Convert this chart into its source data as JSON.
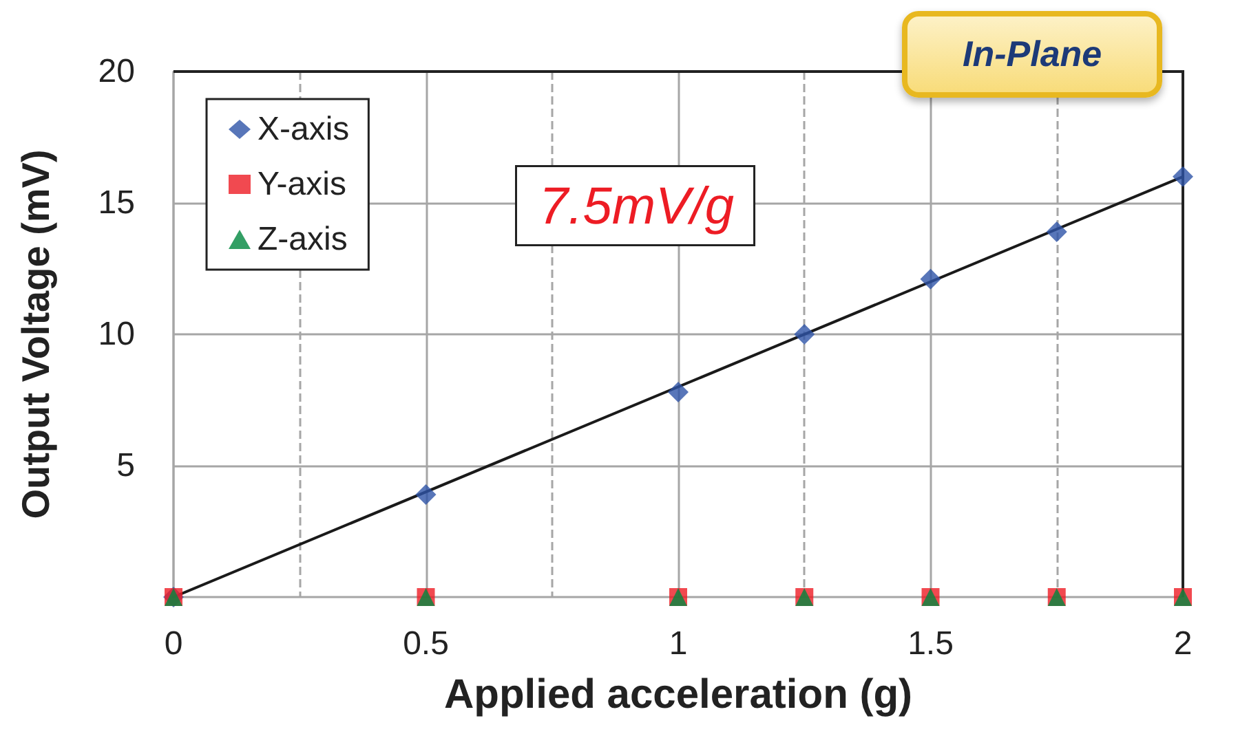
{
  "chart_data": {
    "type": "scatter",
    "xlabel": "Applied acceleration (g)",
    "ylabel": "Output Voltage (mV)",
    "annotations": [
      "7.5mV/g",
      "In-Plane"
    ],
    "xlim": [
      0,
      2
    ],
    "xticks": [
      0,
      {
        "value": 0.25,
        "label": null
      },
      0.5,
      {
        "value": 0.75,
        "label": null
      },
      1,
      {
        "value": 1.25,
        "label": null
      },
      1.5,
      {
        "value": 1.75,
        "label": null
      },
      2
    ],
    "ylim": [
      0,
      20
    ],
    "yticks": [
      5,
      10,
      15,
      20
    ],
    "grid": true,
    "legend": "top left",
    "series": [
      {
        "name": "X-axis",
        "color": "#2e54a8",
        "marker": "diamond",
        "x": [
          0,
          0.5,
          1,
          1.25,
          1.5,
          1.75,
          2
        ],
        "values": [
          0,
          3.9,
          7.8,
          10.0,
          12.1,
          13.9,
          16.0
        ]
      },
      {
        "name": "Y-axis",
        "color": "#ed1c24",
        "marker": "square",
        "x": [
          0,
          0.5,
          1,
          1.25,
          1.5,
          1.75,
          2
        ],
        "values": [
          0,
          0,
          0,
          0,
          0,
          0,
          0
        ]
      },
      {
        "name": "Z-axis",
        "color": "#00873e",
        "marker": "triangle",
        "x": [
          0,
          0.5,
          1,
          1.25,
          1.5,
          1.75,
          2
        ],
        "values": [
          0,
          0,
          0,
          0,
          0,
          0,
          0
        ]
      },
      {
        "type": "line",
        "color": "#1a1a1a",
        "marker": "none",
        "line_style": "solid",
        "x": [
          0,
          2
        ],
        "values": [
          0,
          16
        ]
      }
    ]
  }
}
